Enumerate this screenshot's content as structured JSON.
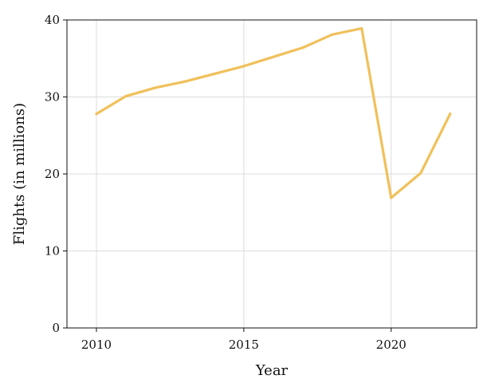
{
  "chart_data": {
    "type": "line",
    "title": "",
    "xlabel": "Year",
    "ylabel": "Flights (in millions)",
    "x": [
      2010,
      2011,
      2012,
      2013,
      2014,
      2015,
      2016,
      2017,
      2018,
      2019,
      2020,
      2021,
      2022
    ],
    "series": [
      {
        "values": [
          27.8,
          30.1,
          31.2,
          32.0,
          33.0,
          34.0,
          35.2,
          36.4,
          38.1,
          38.9,
          16.9,
          20.1,
          27.8
        ],
        "color": "#f0c05a"
      }
    ],
    "xlim": [
      2009,
      2022.9
    ],
    "ylim": [
      0,
      40
    ],
    "xticks": [
      2010,
      2015,
      2020
    ],
    "xtick_labels": [
      "2010",
      "2015",
      "2020"
    ],
    "yticks": [
      0,
      10,
      20,
      30,
      40
    ],
    "ytick_labels": [
      "0",
      "10",
      "20",
      "30",
      "40"
    ],
    "grid": true,
    "legend": "none"
  }
}
